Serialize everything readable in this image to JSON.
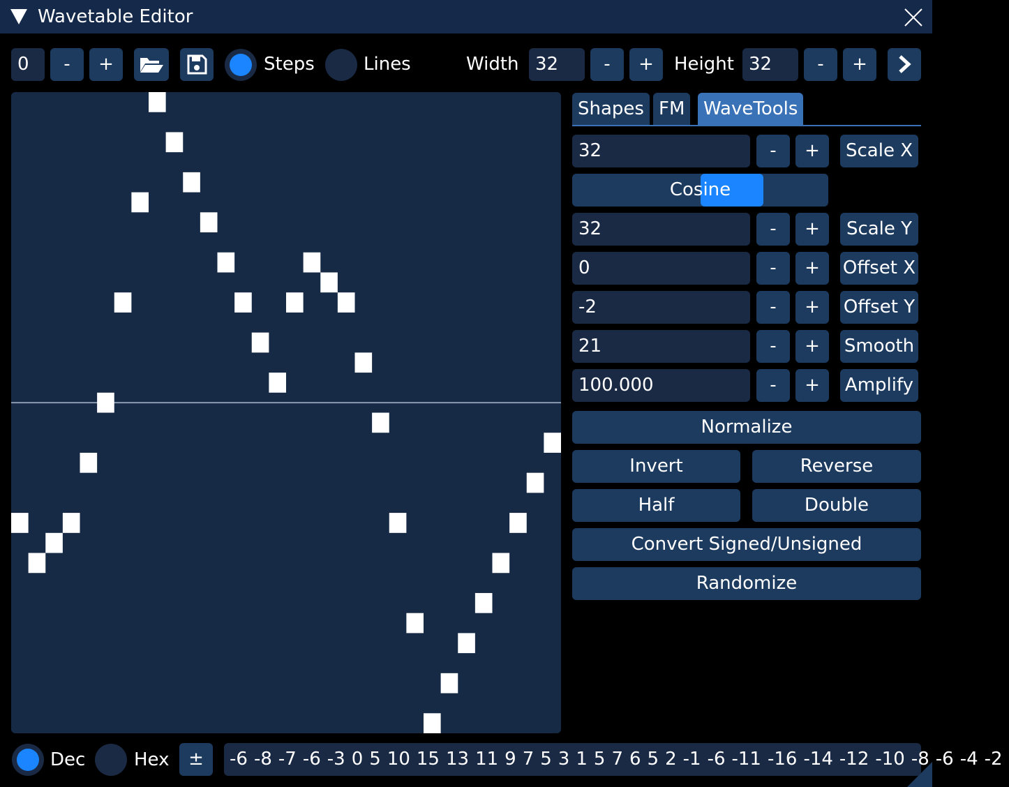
{
  "window": {
    "title": "Wavetable Editor"
  },
  "minus": "-",
  "plus": "+",
  "toolbar": {
    "index": "0",
    "steps": "Steps",
    "lines": "Lines",
    "width_label": "Width",
    "width": 32,
    "height_label": "Height",
    "height": 32
  },
  "tabs": [
    "Shapes",
    "FM",
    "WaveTools"
  ],
  "tools": {
    "scale_x": {
      "value": "32",
      "label": "Scale X"
    },
    "shape": "Cosine",
    "scale_y": {
      "value": "32",
      "label": "Scale Y"
    },
    "offset_x": {
      "value": "0",
      "label": "Offset X"
    },
    "offset_y": {
      "value": "-2",
      "label": "Offset Y"
    },
    "smooth": {
      "value": "21",
      "label": "Smooth"
    },
    "amplify": {
      "value": "100.000",
      "label": "Amplify"
    },
    "normalize": "Normalize",
    "invert": "Invert",
    "reverse": "Reverse",
    "half": "Half",
    "double": "Double",
    "convert": "Convert Signed/Unsigned",
    "randomize": "Randomize"
  },
  "footer": {
    "dec": "Dec",
    "hex": "Hex",
    "sign": "±"
  },
  "wave": {
    "values": [
      -6,
      -8,
      -7,
      -6,
      -3,
      0,
      5,
      10,
      15,
      13,
      11,
      9,
      7,
      5,
      3,
      1,
      5,
      7,
      6,
      5,
      2,
      -1,
      -6,
      -11,
      -16,
      -14,
      -12,
      -10,
      -8,
      -6,
      -4,
      -2
    ]
  }
}
